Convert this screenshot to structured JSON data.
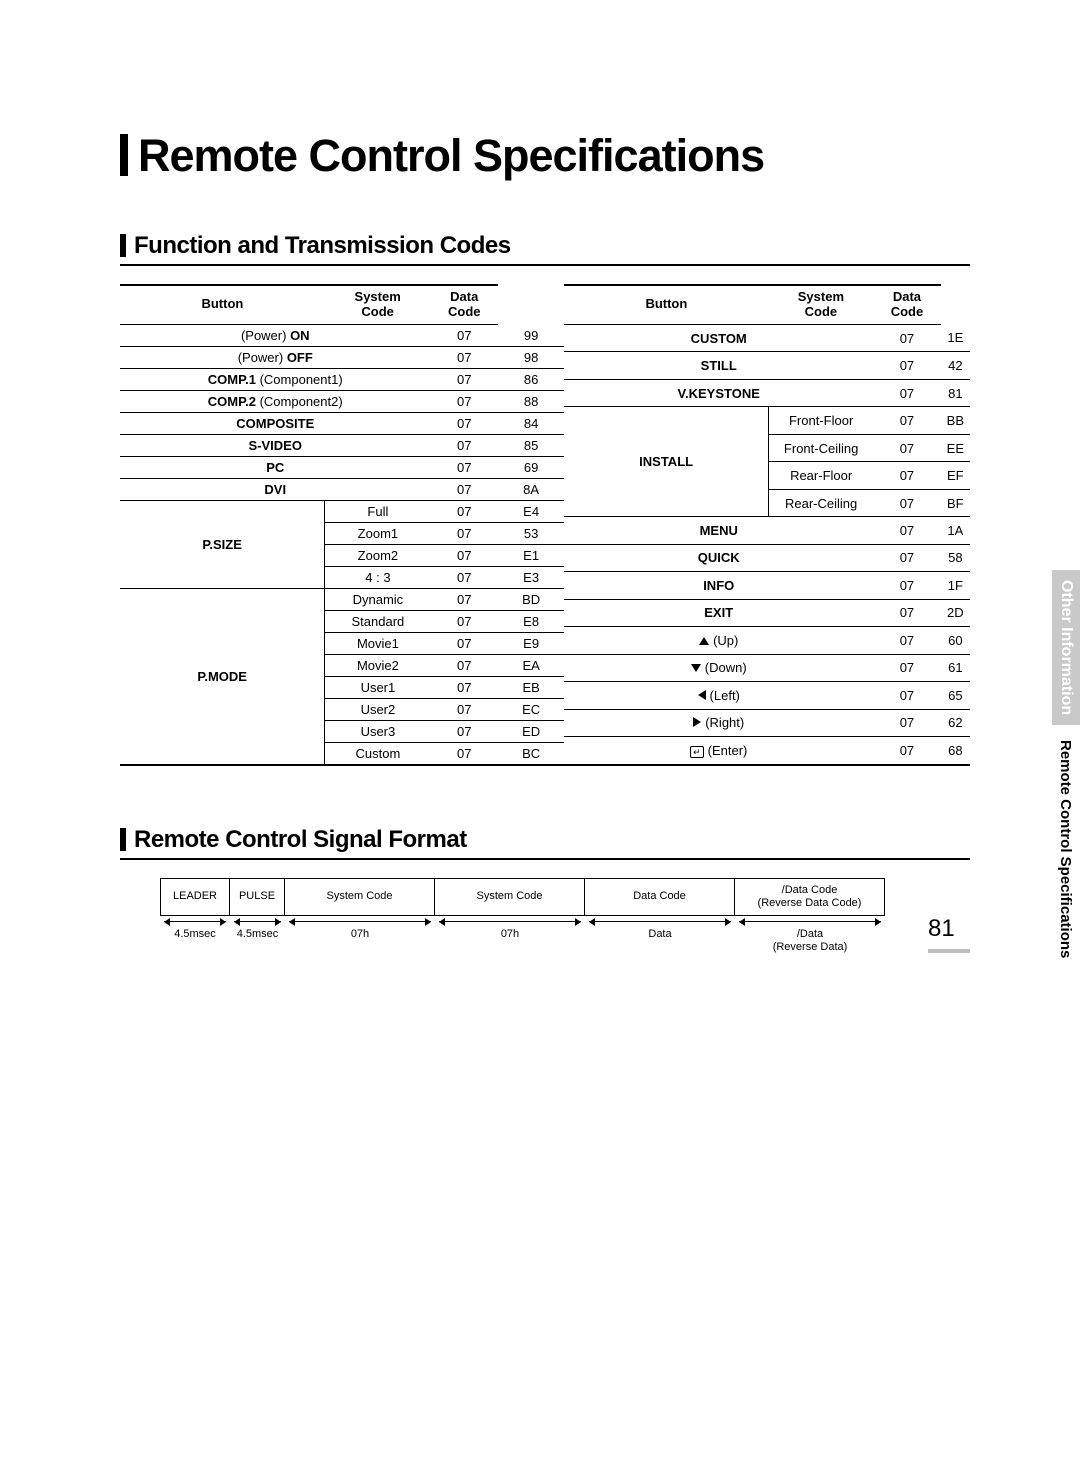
{
  "title": "Remote Control Specifications",
  "section1": "Function and Transmission Codes",
  "section2": "Remote Control Signal Format",
  "headers": {
    "button": "Button",
    "system": "System Code",
    "data": "Data Code"
  },
  "left_simple": [
    {
      "b1": "(Power)",
      "b2": "ON",
      "sys": "07",
      "dat": "99"
    },
    {
      "b1": "(Power)",
      "b2": "OFF",
      "sys": "07",
      "dat": "98"
    },
    {
      "b1b": "COMP.1",
      "b2p": "(Component1)",
      "sys": "07",
      "dat": "86"
    },
    {
      "b1b": "COMP.2",
      "b2p": "(Component2)",
      "sys": "07",
      "dat": "88"
    },
    {
      "b": "COMPOSITE",
      "sys": "07",
      "dat": "84"
    },
    {
      "b": "S-VIDEO",
      "sys": "07",
      "dat": "85"
    },
    {
      "b": "PC",
      "sys": "07",
      "dat": "69"
    },
    {
      "b": "DVI",
      "sys": "07",
      "dat": "8A"
    }
  ],
  "left_psize": {
    "label": "P.SIZE",
    "rows": [
      {
        "s": "Full",
        "sys": "07",
        "dat": "E4"
      },
      {
        "s": "Zoom1",
        "sys": "07",
        "dat": "53"
      },
      {
        "s": "Zoom2",
        "sys": "07",
        "dat": "E1"
      },
      {
        "s": "4 : 3",
        "sys": "07",
        "dat": "E3"
      }
    ]
  },
  "left_pmode": {
    "label": "P.MODE",
    "rows": [
      {
        "s": "Dynamic",
        "sys": "07",
        "dat": "BD"
      },
      {
        "s": "Standard",
        "sys": "07",
        "dat": "E8"
      },
      {
        "s": "Movie1",
        "sys": "07",
        "dat": "E9"
      },
      {
        "s": "Movie2",
        "sys": "07",
        "dat": "EA"
      },
      {
        "s": "User1",
        "sys": "07",
        "dat": "EB"
      },
      {
        "s": "User2",
        "sys": "07",
        "dat": "EC"
      },
      {
        "s": "User3",
        "sys": "07",
        "dat": "ED"
      },
      {
        "s": "Custom",
        "sys": "07",
        "dat": "BC"
      }
    ]
  },
  "right_simple_top": [
    {
      "b": "CUSTOM",
      "sys": "07",
      "dat": "1E"
    },
    {
      "b": "STILL",
      "sys": "07",
      "dat": "42"
    },
    {
      "b": "V.KEYSTONE",
      "sys": "07",
      "dat": "81"
    }
  ],
  "right_install": {
    "label": "INSTALL",
    "rows": [
      {
        "s": "Front-Floor",
        "sys": "07",
        "dat": "BB"
      },
      {
        "s": "Front-Ceiling",
        "sys": "07",
        "dat": "EE"
      },
      {
        "s": "Rear-Floor",
        "sys": "07",
        "dat": "EF"
      },
      {
        "s": "Rear-Ceiling",
        "sys": "07",
        "dat": "BF"
      }
    ]
  },
  "right_simple_bot": [
    {
      "b": "MENU",
      "sys": "07",
      "dat": "1A"
    },
    {
      "b": "QUICK",
      "sys": "07",
      "dat": "58"
    },
    {
      "b": "INFO",
      "sys": "07",
      "dat": "1F"
    },
    {
      "b": "EXIT",
      "sys": "07",
      "dat": "2D"
    }
  ],
  "right_arrows": [
    {
      "icon": "up",
      "s": "(Up)",
      "sys": "07",
      "dat": "60"
    },
    {
      "icon": "dn",
      "s": "(Down)",
      "sys": "07",
      "dat": "61"
    },
    {
      "icon": "lf",
      "s": "(Left)",
      "sys": "07",
      "dat": "65"
    },
    {
      "icon": "rt",
      "s": "(Right)",
      "sys": "07",
      "dat": "62"
    },
    {
      "icon": "enter",
      "s": "(Enter)",
      "sys": "07",
      "dat": "68"
    }
  ],
  "signal": {
    "cells": [
      "LEADER",
      "PULSE",
      "System Code",
      "System Code",
      "Data Code",
      "/Data Code\n(Reverse Data Code)"
    ],
    "widths": [
      70,
      55,
      150,
      150,
      150,
      150
    ],
    "labels": [
      "4.5msec",
      "4.5msec",
      "07h",
      "07h",
      "Data",
      "/Data\n(Reverse Data)"
    ]
  },
  "sidebar": {
    "grey": "Other Information",
    "plain": "Remote Control Specifications"
  },
  "page": "81"
}
